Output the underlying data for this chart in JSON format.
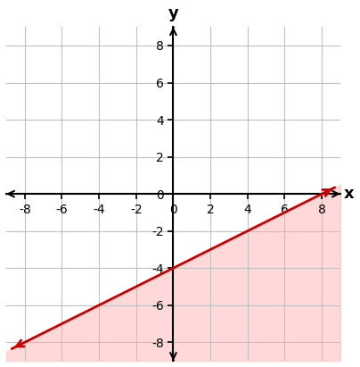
{
  "xlim": [
    -9,
    9
  ],
  "ylim": [
    -9,
    9
  ],
  "xticks": [
    -8,
    -6,
    -4,
    -2,
    0,
    2,
    4,
    6,
    8
  ],
  "yticks": [
    -8,
    -6,
    -4,
    -2,
    0,
    2,
    4,
    6,
    8
  ],
  "slope": 0.5,
  "intercept": -4,
  "line_color": "#cc0000",
  "shade_color": "#ffbbbb",
  "shade_alpha": 0.55,
  "xlabel": "x",
  "ylabel": "y",
  "line_xmin": -8.7,
  "line_xmax": 8.7,
  "grid_color": "#c0c0c0",
  "axis_color": "#000000",
  "tick_fontsize": 10
}
